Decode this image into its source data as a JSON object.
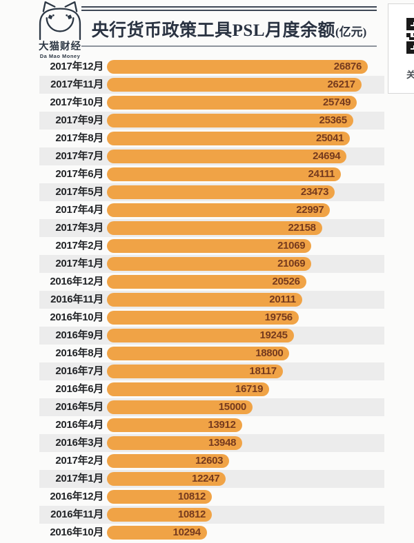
{
  "header": {
    "logo": {
      "cn": "大猫财经",
      "en": "Da Mao Money"
    },
    "title": "央行货币政策工具PSL月度余额",
    "title_unit": "(亿元)"
  },
  "side_card": {
    "partial_text": "关"
  },
  "chart_data": {
    "type": "bar",
    "orientation": "horizontal",
    "title": "央行货币政策工具PSL月度余额(亿元)",
    "xlabel": "",
    "ylabel": "",
    "xlim": [
      0,
      26876
    ],
    "grid": false,
    "legend": false,
    "bar_color": "#F0A346",
    "value_label_color": "#753a1e",
    "zebra_stripe_color": "#ececec",
    "categories": [
      "2017年12月",
      "2017年11月",
      "2017年10月",
      "2017年9月",
      "2017年8月",
      "2017年7月",
      "2017年6月",
      "2017年5月",
      "2017年4月",
      "2017年3月",
      "2017年2月",
      "2017年1月",
      "2016年12月",
      "2016年11月",
      "2016年10月",
      "2016年9月",
      "2016年8月",
      "2016年7月",
      "2016年6月",
      "2016年5月",
      "2016年4月",
      "2016年3月",
      "2017年2月",
      "2017年1月",
      "2016年12月",
      "2016年11月",
      "2016年10月"
    ],
    "values": [
      26876,
      26217,
      25749,
      25365,
      25041,
      24694,
      24111,
      23473,
      22997,
      22158,
      21069,
      21069,
      20526,
      20111,
      19756,
      19245,
      18800,
      18117,
      16719,
      15000,
      13912,
      13948,
      12603,
      12247,
      10812,
      10812,
      10294
    ]
  }
}
